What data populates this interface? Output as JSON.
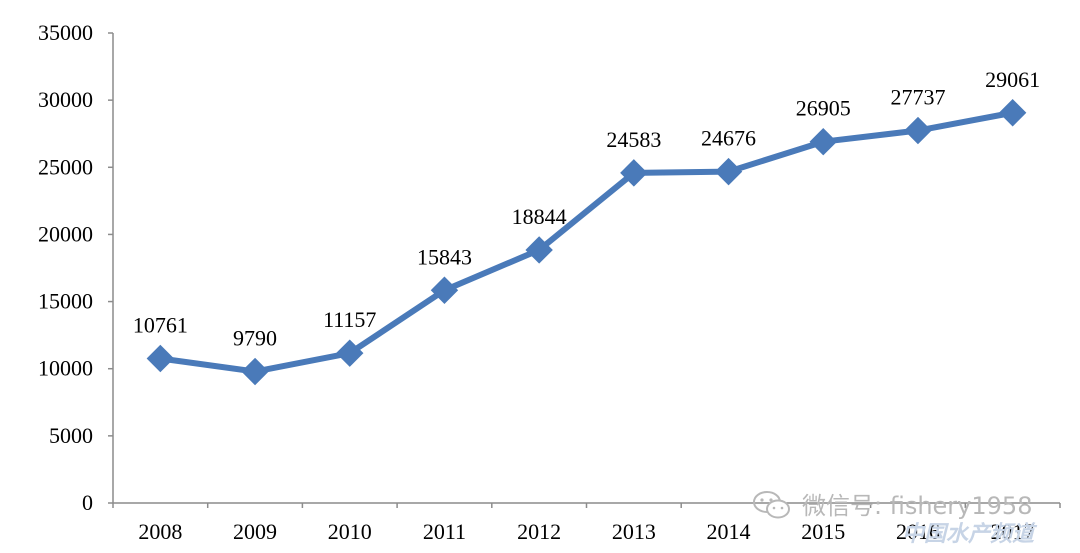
{
  "chart_data": {
    "type": "line",
    "title": "",
    "xlabel": "",
    "ylabel": "",
    "categories": [
      "2008",
      "2009",
      "2010",
      "2011",
      "2012",
      "2013",
      "2014",
      "2015",
      "2016",
      "2017"
    ],
    "series": [
      {
        "values": [
          10761,
          9790,
          11157,
          15843,
          18844,
          24583,
          24676,
          26905,
          27737,
          29061
        ],
        "color": "#4a7ab9",
        "marker": "diamond"
      }
    ],
    "ylim": [
      0,
      35000
    ],
    "yticks": [
      0,
      5000,
      10000,
      15000,
      20000,
      25000,
      30000,
      35000
    ],
    "grid": false,
    "legend": "none",
    "data_labels": true
  },
  "watermark": {
    "icon": "wechat-icon",
    "text": "微信号: fishery1958",
    "subtext": "中国水产频道"
  }
}
